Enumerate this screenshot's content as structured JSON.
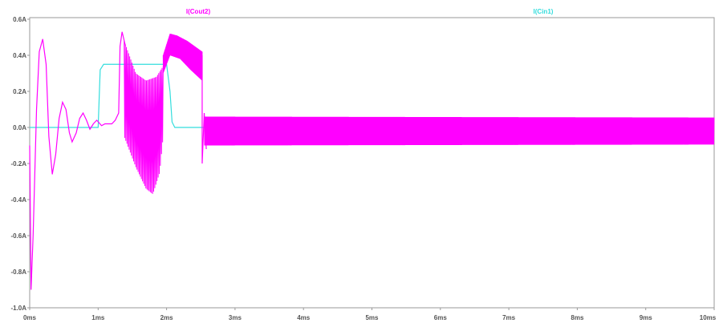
{
  "chart_data": {
    "type": "line",
    "title": "",
    "xlabel": "",
    "ylabel": "",
    "xlim": [
      0,
      10
    ],
    "ylim": [
      -1.0,
      0.6
    ],
    "x_unit": "ms",
    "y_unit": "A",
    "grid": false,
    "legend_placement": "top",
    "x_ticks": [
      "0ms",
      "1ms",
      "2ms",
      "3ms",
      "4ms",
      "5ms",
      "6ms",
      "7ms",
      "8ms",
      "9ms",
      "10ms"
    ],
    "y_ticks": [
      "0.6A",
      "0.4A",
      "0.2A",
      "0.0A",
      "-0.2A",
      "-0.4A",
      "-0.6A",
      "-0.8A",
      "-1.0A"
    ],
    "series": [
      {
        "name": "I(Cout2)",
        "color": "#ff00ff",
        "style": "oscillating",
        "points": [
          [
            0.0,
            -0.1
          ],
          [
            0.02,
            -0.9
          ],
          [
            0.05,
            -0.6
          ],
          [
            0.1,
            0.1
          ],
          [
            0.14,
            0.42
          ],
          [
            0.19,
            0.49
          ],
          [
            0.24,
            0.35
          ],
          [
            0.28,
            -0.05
          ],
          [
            0.33,
            -0.26
          ],
          [
            0.38,
            -0.15
          ],
          [
            0.43,
            0.05
          ],
          [
            0.48,
            0.14
          ],
          [
            0.53,
            0.1
          ],
          [
            0.58,
            -0.03
          ],
          [
            0.62,
            -0.08
          ],
          [
            0.68,
            -0.03
          ],
          [
            0.73,
            0.05
          ],
          [
            0.78,
            0.08
          ],
          [
            0.83,
            0.04
          ],
          [
            0.88,
            -0.01
          ],
          [
            0.93,
            0.02
          ],
          [
            0.98,
            0.04
          ],
          [
            1.05,
            0.01
          ],
          [
            1.1,
            0.02
          ],
          [
            1.2,
            0.02
          ],
          [
            1.25,
            0.04
          ],
          [
            1.3,
            0.08
          ],
          [
            1.32,
            0.45
          ],
          [
            1.35,
            0.53
          ],
          [
            1.4,
            0.45
          ]
        ],
        "bands": [
          {
            "x_start": 1.38,
            "x_end": 1.95,
            "upper": [
              [
                1.38,
                0.48
              ],
              [
                1.55,
                0.3
              ],
              [
                1.7,
                0.26
              ],
              [
                1.85,
                0.28
              ],
              [
                1.95,
                0.34
              ]
            ],
            "lower": [
              [
                1.38,
                -0.05
              ],
              [
                1.55,
                -0.22
              ],
              [
                1.7,
                -0.34
              ],
              [
                1.8,
                -0.37
              ],
              [
                1.9,
                -0.25
              ],
              [
                1.95,
                -0.05
              ]
            ]
          },
          {
            "x_start": 1.95,
            "x_end": 2.52,
            "upper": [
              [
                1.95,
                0.4
              ],
              [
                2.05,
                0.52
              ],
              [
                2.15,
                0.51
              ],
              [
                2.3,
                0.48
              ],
              [
                2.52,
                0.42
              ]
            ],
            "lower": [
              [
                1.95,
                0.3
              ],
              [
                2.05,
                0.4
              ],
              [
                2.2,
                0.38
              ],
              [
                2.35,
                0.32
              ],
              [
                2.52,
                0.26
              ]
            ]
          },
          {
            "x_start": 2.55,
            "x_end": 10.0,
            "upper": [
              [
                2.55,
                0.06
              ],
              [
                10.0,
                0.055
              ]
            ],
            "lower": [
              [
                2.55,
                -0.1
              ],
              [
                10.0,
                -0.095
              ]
            ]
          }
        ],
        "transient": [
          [
            2.52,
            0.4
          ],
          [
            2.52,
            -0.2
          ],
          [
            2.55,
            0.08
          ],
          [
            2.58,
            -0.12
          ]
        ]
      },
      {
        "name": "I(Cin1)",
        "color": "#33dddd",
        "style": "step",
        "points": [
          [
            0.0,
            0.0
          ],
          [
            1.0,
            0.0
          ],
          [
            1.03,
            0.32
          ],
          [
            1.08,
            0.35
          ],
          [
            2.0,
            0.35
          ],
          [
            2.05,
            0.2
          ],
          [
            2.08,
            0.03
          ],
          [
            2.12,
            0.0
          ],
          [
            10.0,
            0.0
          ]
        ]
      }
    ]
  }
}
